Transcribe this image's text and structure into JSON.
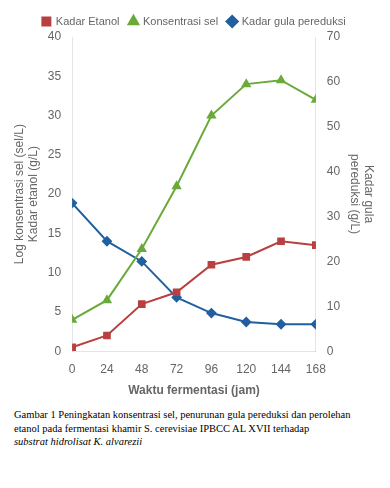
{
  "chart_data": {
    "type": "line",
    "x": [
      0,
      24,
      48,
      72,
      96,
      120,
      144,
      168
    ],
    "series": [
      {
        "name": "Kadar Etanol",
        "color": "#b94040",
        "marker": "square",
        "values": [
          0.5,
          2.0,
          6.0,
          7.5,
          11.0,
          12.0,
          14.0,
          13.5
        ]
      },
      {
        "name": "Konsentrasi sel",
        "color": "#6aaa3a",
        "marker": "triangle",
        "values": [
          4.0,
          6.5,
          13.0,
          21.0,
          30.0,
          34.0,
          34.5,
          32.0
        ]
      },
      {
        "name": "Kadar gula pereduksi",
        "color": "#2060a0",
        "marker": "diamond",
        "axis": "y2",
        "values": [
          33.0,
          24.5,
          20.0,
          12.0,
          8.5,
          6.5,
          6.0,
          6.0
        ]
      }
    ],
    "xlabel": "Waktu fermentasi (jam)",
    "ylabel": "Log konsentrasi sel (sel/L)\nKadar etanol (g/L)",
    "y2label": "Kadar gula\npereduksi (g/L)",
    "xlim": [
      0,
      168
    ],
    "xticks": [
      0,
      24,
      48,
      72,
      96,
      120,
      144,
      168
    ],
    "ylim": [
      0,
      40
    ],
    "yticks": [
      0,
      5,
      10,
      15,
      20,
      25,
      30,
      35,
      40
    ],
    "y2lim": [
      0,
      70
    ],
    "y2ticks": [
      0,
      10,
      20,
      30,
      40,
      50,
      60,
      70
    ],
    "grid": false,
    "legend": "top",
    "caption": [
      "Gambar 1  Peningkatan konsentrasi sel, penurunan gula pereduksi dan perolehan",
      "etanol pada fermentasi khamir S. cerevisiae IPBCC AL XVII terhadap",
      "substrat hidrolisat K. alvarezii"
    ]
  }
}
